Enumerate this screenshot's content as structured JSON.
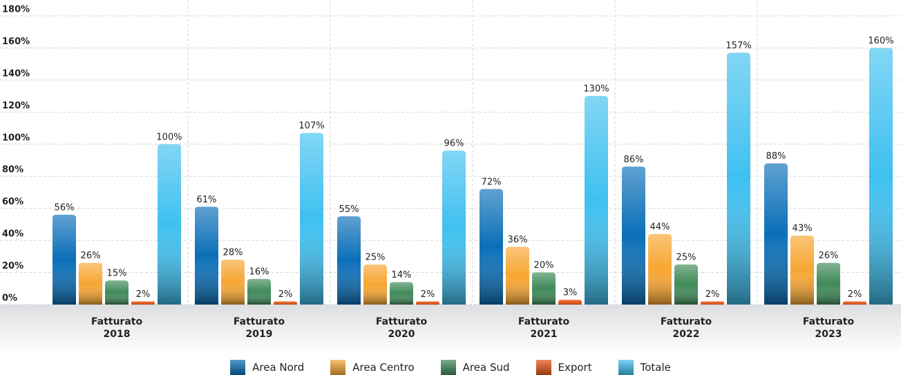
{
  "chart_data": {
    "type": "bar",
    "categories": [
      "Fatturato 2018",
      "Fatturato 2019",
      "Fatturato 2020",
      "Fatturato 2021",
      "Fatturato 2022",
      "Fatturato 2023"
    ],
    "series": [
      {
        "name": "Area Nord",
        "color": "#0a6fb8",
        "values": [
          56,
          61,
          55,
          72,
          86,
          88
        ],
        "value_labels": [
          "56%",
          "61%",
          "55%",
          "72%",
          "86%",
          "88%"
        ]
      },
      {
        "name": "Area Centro",
        "color": "#f7a632",
        "values": [
          26,
          28,
          25,
          36,
          44,
          43
        ],
        "value_labels": [
          "26%",
          "28%",
          "25%",
          "36%",
          "44%",
          "43%"
        ]
      },
      {
        "name": "Area Sud",
        "color": "#3f8a58",
        "values": [
          15,
          16,
          14,
          20,
          25,
          26
        ],
        "value_labels": [
          "15%",
          "16%",
          "14%",
          "20%",
          "25%",
          "26%"
        ]
      },
      {
        "name": "Export",
        "color": "#e8540f",
        "values": [
          2,
          2,
          2,
          3,
          2,
          2
        ],
        "value_labels": [
          "2%",
          "2%",
          "2%",
          "3%",
          "2%",
          "2%"
        ]
      },
      {
        "name": "Totale",
        "color": "#3fc0f0",
        "values": [
          100,
          107,
          96,
          130,
          157,
          160
        ],
        "value_labels": [
          "100%",
          "107%",
          "96%",
          "130%",
          "157%",
          "160%"
        ]
      }
    ],
    "ylim": [
      0,
      180
    ],
    "yticks": [
      {
        "value": 0,
        "label": "0%"
      },
      {
        "value": 20,
        "label": "20%"
      },
      {
        "value": 40,
        "label": "40%"
      },
      {
        "value": 60,
        "label": "60%"
      },
      {
        "value": 80,
        "label": "80%"
      },
      {
        "value": 100,
        "label": "100%"
      },
      {
        "value": 120,
        "label": "120%"
      },
      {
        "value": 140,
        "label": "140%"
      },
      {
        "value": 160,
        "label": "160%"
      },
      {
        "value": 180,
        "label": "180%"
      }
    ],
    "grid": true,
    "legend": "bottom"
  }
}
